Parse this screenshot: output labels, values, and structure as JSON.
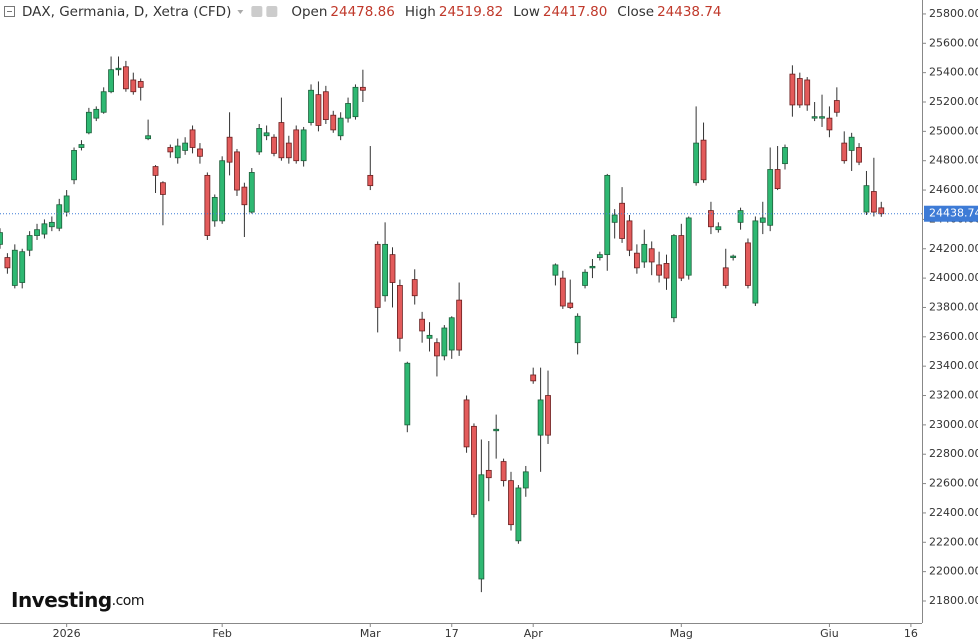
{
  "chart_data": {
    "type": "candlestick",
    "title": "DAX, Germania, D, Xetra (CFD)",
    "header": {
      "labels": [
        "Open",
        "High",
        "Low",
        "Close"
      ],
      "values": [
        "24478.86",
        "24519.82",
        "24417.80",
        "24438.74"
      ]
    },
    "logo": {
      "main": "Investing",
      "suffix": ".com"
    },
    "up_color": "#2eb872",
    "down_color": "#e35b5b",
    "last_line_color": "#3d7bd6",
    "xlim": [
      0,
      124.5
    ],
    "xticks": [
      {
        "value": 9,
        "label": "2026"
      },
      {
        "value": 30,
        "label": "Feb"
      },
      {
        "value": 50,
        "label": "Mar"
      },
      {
        "value": 61,
        "label": "17"
      },
      {
        "value": 72,
        "label": "Apr"
      },
      {
        "value": 92,
        "label": "Mag"
      },
      {
        "value": 112,
        "label": "Giu"
      },
      {
        "value": 123,
        "label": "16"
      }
    ],
    "ylim": [
      21650,
      25895
    ],
    "yticks": [
      {
        "value": 21800,
        "label": "21800.00"
      },
      {
        "value": 22000,
        "label": "22000.00"
      },
      {
        "value": 22200,
        "label": "22200.00"
      },
      {
        "value": 22400,
        "label": "22400.00"
      },
      {
        "value": 22600,
        "label": "22600.00"
      },
      {
        "value": 22800,
        "label": "22800.00"
      },
      {
        "value": 23000,
        "label": "23000.00"
      },
      {
        "value": 23200,
        "label": "23200.00"
      },
      {
        "value": 23400,
        "label": "23400.00"
      },
      {
        "value": 23600,
        "label": "23600.00"
      },
      {
        "value": 23800,
        "label": "23800.00"
      },
      {
        "value": 24000,
        "label": "24000.00"
      },
      {
        "value": 24200,
        "label": "24200.00"
      },
      {
        "value": 24400,
        "label": "24400.00"
      },
      {
        "value": 24600,
        "label": "24600.00"
      },
      {
        "value": 24800,
        "label": "24800.00"
      },
      {
        "value": 25000,
        "label": "25000.00"
      },
      {
        "value": 25200,
        "label": "25200.00"
      },
      {
        "value": 25400,
        "label": "25400.00"
      },
      {
        "value": 25600,
        "label": "25600.00"
      },
      {
        "value": 25800,
        "label": "25800.00"
      }
    ],
    "open": [
      24230,
      24140,
      23950,
      23970,
      24190,
      24290,
      24300,
      24350,
      24340,
      24450,
      24670,
      24890,
      24990,
      25090,
      25130,
      25270,
      25420,
      25440,
      25350,
      25340,
      24950,
      24760,
      24650,
      24890,
      24820,
      24870,
      25010,
      24880,
      24700,
      24390,
      24390,
      24960,
      24860,
      24620,
      24450,
      24860,
      24970,
      24960,
      25060,
      24920,
      25010,
      24800,
      25060,
      25250,
      25270,
      25110,
      24970,
      25090,
      25100,
      25300,
      24700,
      24230,
      23880,
      24160,
      23950,
      23000,
      23990,
      23720,
      23590,
      23560,
      23470,
      23510,
      23850,
      23170,
      22990,
      21950,
      22690,
      22960,
      22750,
      22620,
      22210,
      22570,
      23340,
      22930,
      23200,
      24020,
      24000,
      23830,
      23560,
      23950,
      24070,
      24140,
      24160,
      24380,
      24510,
      24390,
      24170,
      24110,
      24200,
      24090,
      24100,
      23730,
      24290,
      24020,
      24650,
      24940,
      24460,
      24330,
      24070,
      24140,
      24380,
      24240,
      23830,
      24380,
      24360,
      24740,
      24780,
      25390,
      25360,
      25350,
      25090,
      25090,
      25090,
      25210,
      24920,
      24870,
      24890,
      24450,
      24590,
      24478.86
    ],
    "high": [
      24340,
      24170,
      24230,
      24200,
      24320,
      24370,
      24400,
      24420,
      24540,
      24600,
      24890,
      24940,
      25160,
      25170,
      25300,
      25510,
      25510,
      25480,
      25400,
      25360,
      25080,
      24770,
      24660,
      24910,
      24950,
      24960,
      25040,
      24920,
      24720,
      24570,
      24830,
      25130,
      24880,
      24650,
      24750,
      25050,
      25040,
      24980,
      25230,
      24970,
      25040,
      25030,
      25320,
      25340,
      25310,
      25140,
      25130,
      25230,
      25320,
      25420,
      24900,
      24250,
      24380,
      24210,
      23990,
      23430,
      24060,
      23770,
      23700,
      23590,
      23680,
      23740,
      23970,
      23200,
      23010,
      22900,
      22890,
      23070,
      22770,
      22680,
      22590,
      22720,
      23390,
      23390,
      23370,
      24100,
      24050,
      23990,
      23760,
      24060,
      24130,
      24180,
      24710,
      24470,
      24620,
      24430,
      24230,
      24330,
      24250,
      24180,
      24160,
      24300,
      24370,
      24420,
      25170,
      25060,
      24520,
      24380,
      24200,
      24160,
      24480,
      24270,
      24420,
      24520,
      24890,
      24900,
      24910,
      25450,
      25400,
      25370,
      25200,
      25250,
      25170,
      25300,
      25000,
      24990,
      24920,
      24730,
      24820,
      24519.82
    ],
    "low": [
      24200,
      24030,
      23930,
      23930,
      24150,
      24260,
      24270,
      24320,
      24320,
      24420,
      24640,
      24870,
      24980,
      25070,
      25120,
      25260,
      25380,
      25270,
      25250,
      25210,
      24940,
      24580,
      24360,
      24820,
      24780,
      24840,
      24850,
      24780,
      24260,
      24350,
      24370,
      24700,
      24560,
      24280,
      24440,
      24840,
      24940,
      24830,
      24800,
      24780,
      24780,
      24760,
      25040,
      25000,
      25050,
      24990,
      24940,
      25060,
      25080,
      25200,
      24600,
      23630,
      23840,
      23800,
      23500,
      22950,
      23820,
      23560,
      23500,
      23330,
      23440,
      23450,
      23470,
      22810,
      22370,
      21860,
      22480,
      22770,
      22580,
      22280,
      22190,
      22510,
      23280,
      22680,
      22870,
      23950,
      23790,
      23790,
      23480,
      23930,
      24000,
      24120,
      24050,
      24270,
      24240,
      24150,
      24030,
      24070,
      24020,
      23970,
      23920,
      23700,
      23980,
      23990,
      24630,
      24650,
      24300,
      24310,
      23930,
      24120,
      24330,
      23930,
      23810,
      24300,
      24320,
      24600,
      24740,
      25100,
      25160,
      25140,
      25070,
      25030,
      24960,
      25100,
      24780,
      24730,
      24770,
      24430,
      24420,
      24417.8
    ],
    "close": [
      24310,
      24070,
      24190,
      24180,
      24290,
      24330,
      24370,
      24380,
      24500,
      24560,
      24870,
      24910,
      25130,
      25150,
      25270,
      25420,
      25430,
      25290,
      25270,
      25300,
      24970,
      24700,
      24570,
      24860,
      24900,
      24920,
      24890,
      24830,
      24290,
      24550,
      24800,
      24790,
      24600,
      24500,
      24720,
      25020,
      24990,
      24850,
      24820,
      24820,
      24800,
      25010,
      25280,
      25040,
      25080,
      25010,
      25090,
      25190,
      25300,
      25280,
      24630,
      23800,
      24230,
      23970,
      23590,
      23420,
      23880,
      23640,
      23610,
      23470,
      23660,
      23730,
      23510,
      22850,
      22390,
      22660,
      22640,
      22970,
      22620,
      22320,
      22570,
      22680,
      23300,
      23170,
      22930,
      24090,
      23810,
      23800,
      23740,
      24040,
      24080,
      24160,
      24700,
      24430,
      24270,
      24190,
      24070,
      24230,
      24110,
      24020,
      24000,
      24290,
      24000,
      24410,
      24920,
      24670,
      24350,
      24350,
      23950,
      24150,
      24460,
      23950,
      24390,
      24410,
      24740,
      24610,
      24890,
      25180,
      25180,
      25180,
      25100,
      25100,
      25010,
      25130,
      24800,
      24960,
      24790,
      24630,
      24450,
      24438.74
    ]
  }
}
